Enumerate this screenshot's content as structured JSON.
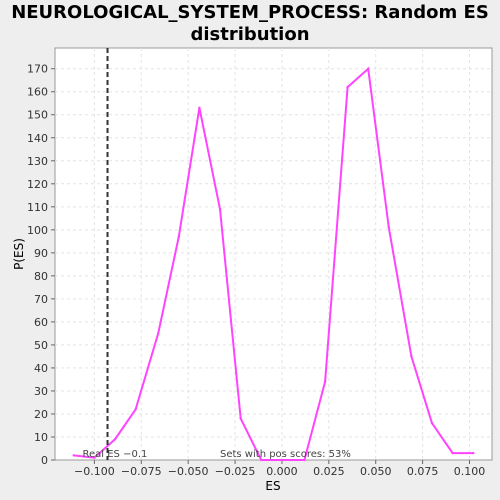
{
  "chart_data": {
    "type": "line",
    "title_line1": "NEUROLOGICAL_SYSTEM_PROCESS: Random ES",
    "title_line2": "distribution",
    "xlabel": "ES",
    "ylabel": "P(ES)",
    "xlim": [
      -0.121,
      0.112
    ],
    "ylim": [
      0,
      179
    ],
    "x_ticks": [
      -0.1,
      -0.075,
      -0.05,
      -0.025,
      0.0,
      0.025,
      0.05,
      0.075,
      0.1
    ],
    "x_tick_labels": [
      "−0.100",
      "−0.075",
      "−0.050",
      "−0.025",
      "0.000",
      "0.025",
      "0.050",
      "0.075",
      "0.100"
    ],
    "y_ticks": [
      0,
      10,
      20,
      30,
      40,
      50,
      60,
      70,
      80,
      90,
      100,
      110,
      120,
      130,
      140,
      150,
      160,
      170
    ],
    "grid": true,
    "series": [
      {
        "color": "#ff44ff",
        "x": [
          -0.111,
          -0.1,
          -0.089,
          -0.078,
          -0.066,
          -0.055,
          -0.044,
          -0.033,
          -0.022,
          -0.011,
          0.0,
          0.012,
          0.023,
          0.035,
          0.046,
          0.057,
          0.069,
          0.08,
          0.091,
          0.102
        ],
        "y": [
          2,
          1,
          9,
          22,
          55,
          97,
          153,
          109,
          18,
          0,
          0,
          0,
          34,
          162,
          170,
          101,
          45,
          16,
          3,
          3
        ]
      }
    ],
    "real_es": {
      "x": -0.093,
      "label": "Real ES −0.1"
    },
    "annotation": "Sets with pos scores: 53%"
  }
}
